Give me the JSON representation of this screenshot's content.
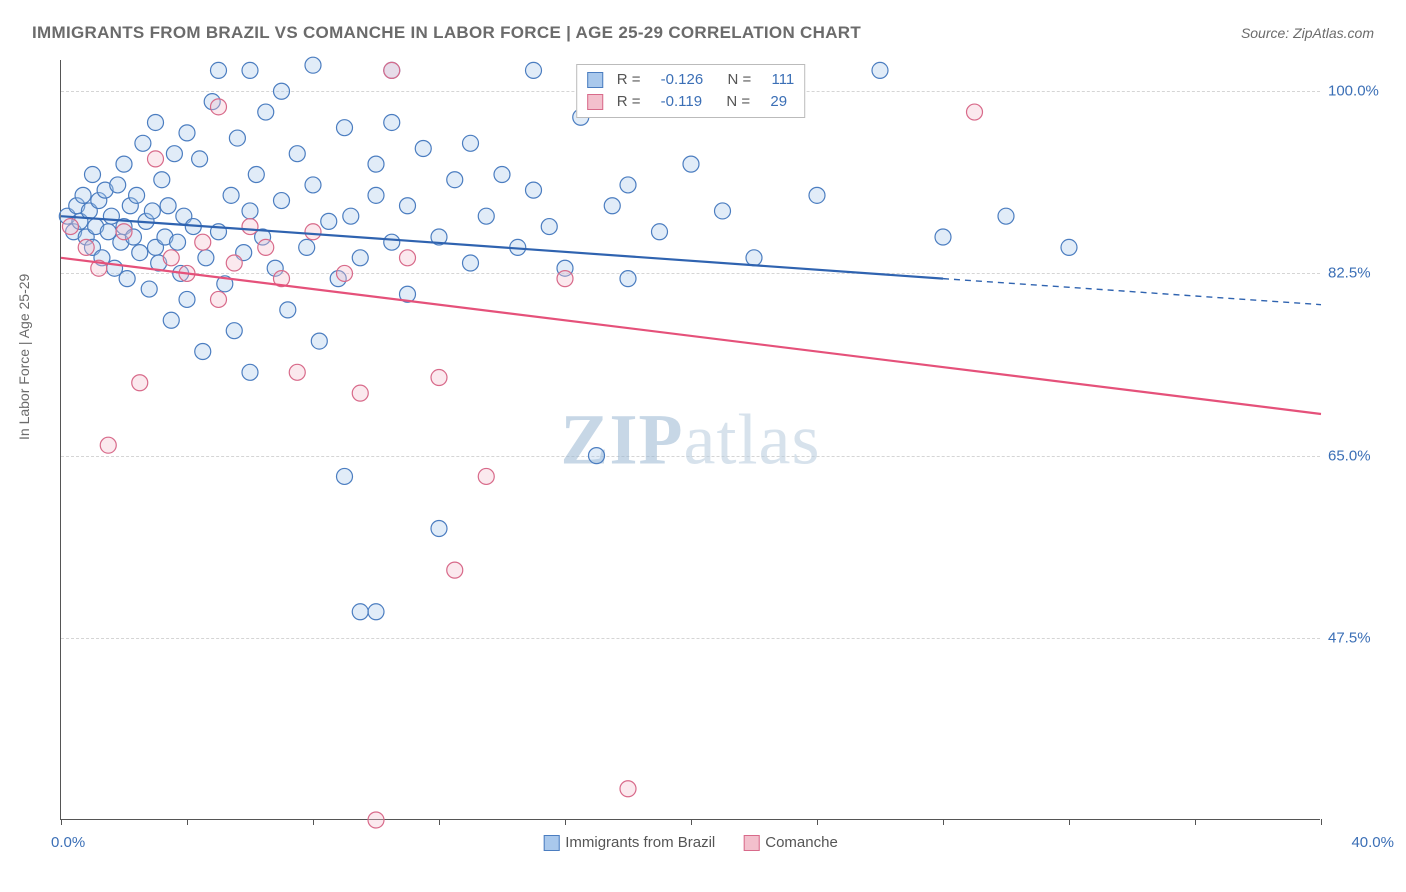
{
  "title": "IMMIGRANTS FROM BRAZIL VS COMANCHE IN LABOR FORCE | AGE 25-29 CORRELATION CHART",
  "source": "Source: ZipAtlas.com",
  "ylabel": "In Labor Force | Age 25-29",
  "watermark_a": "ZIP",
  "watermark_b": "atlas",
  "chart": {
    "type": "scatter-with-regression",
    "background_color": "#ffffff",
    "grid_color": "#d5d5d5",
    "axis_color": "#555555",
    "tick_label_color": "#3b6fb6",
    "label_color": "#6b6b6b",
    "title_color": "#6b6b6b",
    "title_fontsize": 17,
    "label_fontsize": 14,
    "tick_fontsize": 15,
    "xlim": [
      0,
      40
    ],
    "ylim": [
      30,
      103
    ],
    "x_axis_label_left": "0.0%",
    "x_axis_label_right": "40.0%",
    "y_ticks": [
      47.5,
      65.0,
      82.5,
      100.0
    ],
    "y_tick_labels": [
      "47.5%",
      "65.0%",
      "82.5%",
      "100.0%"
    ],
    "x_minor_ticks": [
      0,
      4,
      8,
      12,
      16,
      20,
      24,
      28,
      32,
      36,
      40
    ],
    "marker_radius": 8,
    "marker_stroke_width": 1.2,
    "marker_fill_opacity": 0.35,
    "line_width": 2.2,
    "series": [
      {
        "name": "Immigrants from Brazil",
        "color_fill": "#a9c8ec",
        "color_stroke": "#4b7dc0",
        "line_color": "#2f63b0",
        "R": "-0.126",
        "N": "111",
        "regression": {
          "x1": 0,
          "y1": 88.0,
          "x2": 28,
          "y2": 82.0,
          "extend_x2": 40,
          "extend_y2": 79.5
        },
        "points": [
          [
            0.2,
            88.0
          ],
          [
            0.4,
            86.5
          ],
          [
            0.5,
            89.0
          ],
          [
            0.6,
            87.5
          ],
          [
            0.7,
            90.0
          ],
          [
            0.8,
            86.0
          ],
          [
            0.9,
            88.5
          ],
          [
            1.0,
            85.0
          ],
          [
            1.0,
            92.0
          ],
          [
            1.1,
            87.0
          ],
          [
            1.2,
            89.5
          ],
          [
            1.3,
            84.0
          ],
          [
            1.4,
            90.5
          ],
          [
            1.5,
            86.5
          ],
          [
            1.6,
            88.0
          ],
          [
            1.7,
            83.0
          ],
          [
            1.8,
            91.0
          ],
          [
            1.9,
            85.5
          ],
          [
            2.0,
            87.0
          ],
          [
            2.0,
            93.0
          ],
          [
            2.1,
            82.0
          ],
          [
            2.2,
            89.0
          ],
          [
            2.3,
            86.0
          ],
          [
            2.4,
            90.0
          ],
          [
            2.5,
            84.5
          ],
          [
            2.6,
            95.0
          ],
          [
            2.7,
            87.5
          ],
          [
            2.8,
            81.0
          ],
          [
            2.9,
            88.5
          ],
          [
            3.0,
            85.0
          ],
          [
            3.0,
            97.0
          ],
          [
            3.1,
            83.5
          ],
          [
            3.2,
            91.5
          ],
          [
            3.3,
            86.0
          ],
          [
            3.4,
            89.0
          ],
          [
            3.5,
            78.0
          ],
          [
            3.6,
            94.0
          ],
          [
            3.7,
            85.5
          ],
          [
            3.8,
            82.5
          ],
          [
            3.9,
            88.0
          ],
          [
            4.0,
            96.0
          ],
          [
            4.0,
            80.0
          ],
          [
            4.2,
            87.0
          ],
          [
            4.4,
            93.5
          ],
          [
            4.5,
            75.0
          ],
          [
            4.6,
            84.0
          ],
          [
            4.8,
            99.0
          ],
          [
            5.0,
            86.5
          ],
          [
            5.0,
            102.0
          ],
          [
            5.2,
            81.5
          ],
          [
            5.4,
            90.0
          ],
          [
            5.5,
            77.0
          ],
          [
            5.6,
            95.5
          ],
          [
            5.8,
            84.5
          ],
          [
            6.0,
            88.5
          ],
          [
            6.0,
            102.0
          ],
          [
            6.0,
            73.0
          ],
          [
            6.2,
            92.0
          ],
          [
            6.4,
            86.0
          ],
          [
            6.5,
            98.0
          ],
          [
            6.8,
            83.0
          ],
          [
            7.0,
            89.5
          ],
          [
            7.0,
            100.0
          ],
          [
            7.2,
            79.0
          ],
          [
            7.5,
            94.0
          ],
          [
            7.8,
            85.0
          ],
          [
            8.0,
            91.0
          ],
          [
            8.0,
            102.5
          ],
          [
            8.2,
            76.0
          ],
          [
            8.5,
            87.5
          ],
          [
            8.8,
            82.0
          ],
          [
            9.0,
            96.5
          ],
          [
            9.0,
            63.0
          ],
          [
            9.2,
            88.0
          ],
          [
            9.5,
            84.0
          ],
          [
            9.5,
            50.0
          ],
          [
            10.0,
            93.0
          ],
          [
            10.0,
            90.0
          ],
          [
            10.0,
            50.0
          ],
          [
            10.5,
            85.5
          ],
          [
            10.5,
            102.0
          ],
          [
            10.5,
            97.0
          ],
          [
            11.0,
            80.5
          ],
          [
            11.0,
            89.0
          ],
          [
            11.5,
            94.5
          ],
          [
            12.0,
            86.0
          ],
          [
            12.0,
            58.0
          ],
          [
            12.5,
            91.5
          ],
          [
            13.0,
            83.5
          ],
          [
            13.0,
            95.0
          ],
          [
            13.5,
            88.0
          ],
          [
            14.0,
            92.0
          ],
          [
            14.5,
            85.0
          ],
          [
            15.0,
            90.5
          ],
          [
            15.0,
            102.0
          ],
          [
            15.5,
            87.0
          ],
          [
            16.0,
            83.0
          ],
          [
            16.5,
            97.5
          ],
          [
            17.0,
            65.0
          ],
          [
            17.5,
            89.0
          ],
          [
            18.0,
            91.0
          ],
          [
            18.0,
            82.0
          ],
          [
            19.0,
            86.5
          ],
          [
            20.0,
            93.0
          ],
          [
            21.0,
            88.5
          ],
          [
            22.0,
            84.0
          ],
          [
            24.0,
            90.0
          ],
          [
            26.0,
            102.0
          ],
          [
            28.0,
            86.0
          ],
          [
            30.0,
            88.0
          ],
          [
            32.0,
            85.0
          ]
        ]
      },
      {
        "name": "Comanche",
        "color_fill": "#f3c0cd",
        "color_stroke": "#d86a8a",
        "line_color": "#e5517a",
        "R": "-0.119",
        "N": "29",
        "regression": {
          "x1": 0,
          "y1": 84.0,
          "x2": 40,
          "y2": 69.0,
          "extend_x2": 40,
          "extend_y2": 69.0
        },
        "points": [
          [
            0.3,
            87.0
          ],
          [
            0.8,
            85.0
          ],
          [
            1.2,
            83.0
          ],
          [
            1.5,
            66.0
          ],
          [
            2.0,
            86.5
          ],
          [
            2.5,
            72.0
          ],
          [
            3.0,
            93.5
          ],
          [
            3.5,
            84.0
          ],
          [
            4.0,
            82.5
          ],
          [
            4.5,
            85.5
          ],
          [
            5.0,
            80.0
          ],
          [
            5.0,
            98.5
          ],
          [
            5.5,
            83.5
          ],
          [
            6.0,
            87.0
          ],
          [
            6.5,
            85.0
          ],
          [
            7.0,
            82.0
          ],
          [
            7.5,
            73.0
          ],
          [
            8.0,
            86.5
          ],
          [
            9.0,
            82.5
          ],
          [
            9.5,
            71.0
          ],
          [
            10.0,
            30.0
          ],
          [
            10.5,
            102.0
          ],
          [
            11.0,
            84.0
          ],
          [
            12.0,
            72.5
          ],
          [
            12.5,
            54.0
          ],
          [
            13.5,
            63.0
          ],
          [
            16.0,
            82.0
          ],
          [
            18.0,
            33.0
          ],
          [
            29.0,
            98.0
          ]
        ]
      }
    ]
  },
  "legend_bottom": [
    {
      "label": "Immigrants from Brazil"
    },
    {
      "label": "Comanche"
    }
  ],
  "legend_top_labels": {
    "R": "R =",
    "N": "N ="
  }
}
